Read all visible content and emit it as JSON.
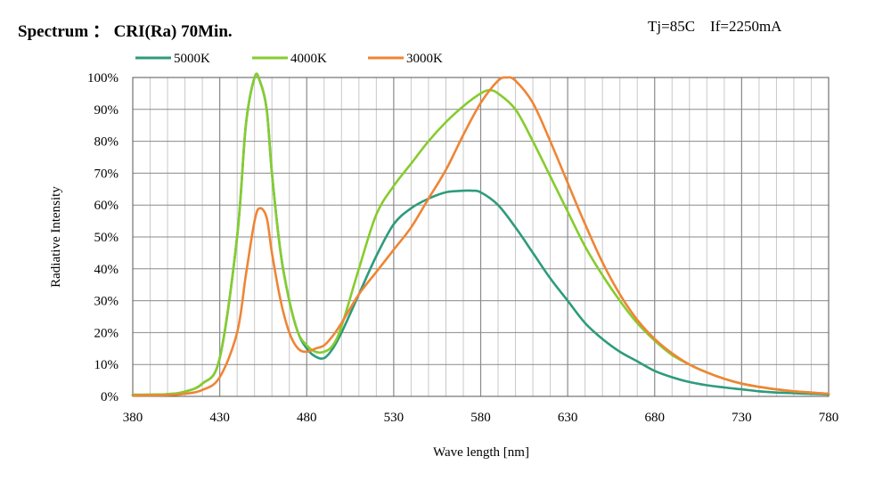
{
  "title": "Spectrum ： CRI(Ra) 70Min.",
  "conditions": "Tj=85C    If=2250mA",
  "chart_data": {
    "type": "line",
    "xlabel": "Wave length [nm]",
    "ylabel": "Radiative Intensity",
    "xlim": [
      380,
      780
    ],
    "ylim": [
      0,
      100
    ],
    "x_ticks": [
      380,
      430,
      480,
      530,
      580,
      630,
      680,
      730,
      780
    ],
    "y_ticks": [
      "0%",
      "10%",
      "20%",
      "30%",
      "40%",
      "50%",
      "60%",
      "70%",
      "80%",
      "90%",
      "100%"
    ],
    "minor_x_step": 10,
    "grid": true,
    "legend_position": "top",
    "series": [
      {
        "name": "5000K",
        "color": "#2e9b7c",
        "x": [
          380,
          400,
          410,
          420,
          430,
          440,
          445,
          450,
          453,
          457,
          460,
          465,
          470,
          475,
          480,
          485,
          490,
          495,
          500,
          510,
          520,
          530,
          540,
          550,
          560,
          570,
          575,
          580,
          590,
          600,
          610,
          620,
          630,
          640,
          650,
          660,
          670,
          680,
          690,
          700,
          710,
          720,
          730,
          740,
          750,
          760,
          770,
          780
        ],
        "y": [
          0.5,
          0.7,
          1.5,
          4,
          12,
          50,
          85,
          100,
          99,
          90,
          70,
          45,
          30,
          20,
          15,
          12.5,
          12,
          15,
          20,
          32,
          44,
          54,
          59,
          62,
          64,
          64.5,
          64.5,
          64,
          60,
          53,
          45,
          37,
          30,
          23,
          18,
          14,
          11,
          8,
          6,
          4.5,
          3.5,
          2.8,
          2.2,
          1.6,
          1.2,
          1,
          0.8,
          0.6
        ]
      },
      {
        "name": "4000K",
        "color": "#86cc2e",
        "x": [
          380,
          400,
          410,
          420,
          430,
          440,
          445,
          450,
          453,
          457,
          460,
          465,
          470,
          475,
          480,
          485,
          490,
          495,
          500,
          510,
          520,
          530,
          540,
          550,
          560,
          570,
          580,
          585,
          590,
          600,
          610,
          620,
          630,
          640,
          650,
          660,
          670,
          680,
          690,
          700,
          710,
          720,
          730,
          740,
          750,
          760,
          770,
          780
        ],
        "y": [
          0.5,
          0.7,
          1.5,
          4,
          12,
          50,
          85,
          100,
          99,
          90,
          70,
          45,
          30,
          20,
          16,
          14,
          14,
          16,
          22,
          40,
          57,
          66,
          73,
          80,
          86,
          91,
          95,
          96,
          95,
          90,
          80,
          69,
          58,
          47,
          38,
          30,
          23,
          17.5,
          13,
          10,
          7.5,
          5.5,
          4,
          3,
          2.2,
          1.6,
          1.2,
          0.8
        ]
      },
      {
        "name": "3000K",
        "color": "#ef8535",
        "x": [
          380,
          400,
          410,
          420,
          430,
          440,
          445,
          450,
          453,
          457,
          460,
          465,
          470,
          475,
          480,
          485,
          490,
          495,
          500,
          510,
          520,
          530,
          540,
          550,
          560,
          570,
          580,
          590,
          595,
          600,
          610,
          620,
          630,
          640,
          650,
          660,
          670,
          680,
          690,
          700,
          710,
          720,
          730,
          740,
          750,
          760,
          770,
          780
        ],
        "y": [
          0.3,
          0.4,
          0.8,
          2,
          6,
          20,
          38,
          55,
          59,
          56,
          45,
          30,
          20,
          15,
          14,
          15,
          16,
          19,
          23,
          32,
          39,
          46,
          53,
          62,
          71,
          82,
          92,
          99,
          100,
          99,
          92,
          80,
          67,
          54,
          42,
          32,
          24,
          18,
          13.5,
          10,
          7.5,
          5.5,
          4,
          3,
          2.2,
          1.6,
          1.2,
          0.8
        ]
      }
    ]
  }
}
